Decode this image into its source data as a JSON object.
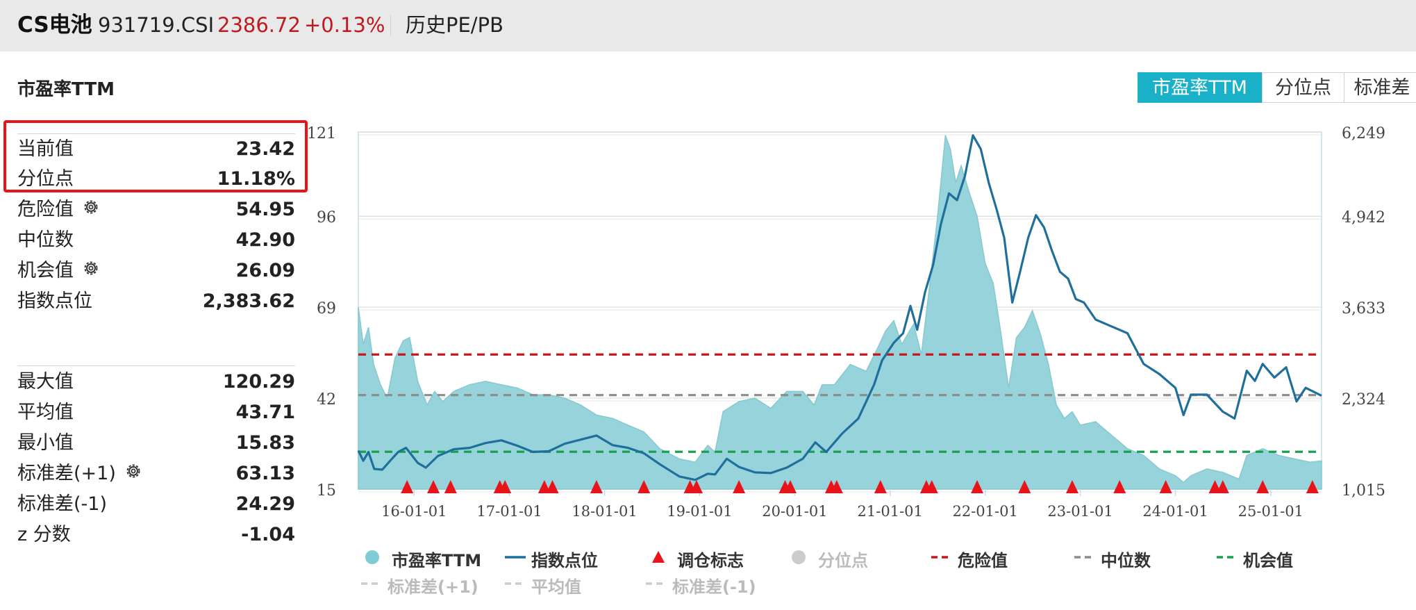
{
  "header": {
    "name": "CS电池",
    "code": "931719.CSI",
    "price": "2386.72",
    "change": "+0.13%",
    "view": "历史PE/PB"
  },
  "panel": {
    "title": "市盈率TTM",
    "tabs": [
      "市盈率TTM",
      "分位点",
      "标准差"
    ],
    "active_tab": "市盈率TTM"
  },
  "stats": {
    "current": {
      "label": "当前值",
      "value": "23.42"
    },
    "percentile": {
      "label": "分位点",
      "value": "11.18%"
    },
    "danger": {
      "label": "危险值",
      "value": "54.95"
    },
    "median": {
      "label": "中位数",
      "value": "42.90"
    },
    "opportunity": {
      "label": "机会值",
      "value": "26.09"
    },
    "index": {
      "label": "指数点位",
      "value": "2,383.62"
    },
    "max": {
      "label": "最大值",
      "value": "120.29"
    },
    "mean": {
      "label": "平均值",
      "value": "43.71"
    },
    "min": {
      "label": "最小值",
      "value": "15.83"
    },
    "sd_plus": {
      "label": "标准差(+1)",
      "value": "63.13"
    },
    "sd_minus": {
      "label": "标准差(-1)",
      "value": "24.29"
    },
    "z": {
      "label": "z 分数",
      "value": "-1.04"
    }
  },
  "colors": {
    "accent": "#1ab0c8",
    "area": "#96d3da",
    "index_line": "#1f6f9c",
    "danger": "#c8161d",
    "median": "#8c8c8c",
    "opportunity": "#1aa050",
    "marker": "#e8141a",
    "highlight_box": "#e8141a"
  },
  "chart_data": {
    "type": "area",
    "x_start": "2015-06-01",
    "x_end": "2025-07-15",
    "x_tick_labels": [
      "16-01-01",
      "17-01-01",
      "18-01-01",
      "19-01-01",
      "20-01-01",
      "21-01-01",
      "22-01-01",
      "23-01-01",
      "24-01-01",
      "25-01-01"
    ],
    "x_tick_dates": [
      "2016-01-01",
      "2017-01-01",
      "2018-01-01",
      "2019-01-01",
      "2020-01-01",
      "2021-01-01",
      "2022-01-01",
      "2023-01-01",
      "2024-01-01",
      "2025-01-01"
    ],
    "y_left": {
      "ticks": [
        "15",
        "42",
        "69",
        "96",
        "121"
      ],
      "tick_values": [
        15,
        42,
        69,
        96,
        121
      ],
      "range": [
        15,
        121
      ]
    },
    "y_right": {
      "ticks": [
        "1,015",
        "2,324",
        "3,633",
        "4,942",
        "6,249"
      ],
      "tick_values": [
        1015,
        2324,
        3633,
        4942,
        6249
      ],
      "range": [
        1015,
        6249
      ]
    },
    "series": [
      {
        "name": "市盈率TTM",
        "kind": "area",
        "axis": "left",
        "points": [
          [
            "2015-06-01",
            69
          ],
          [
            "2015-06-20",
            58
          ],
          [
            "2015-07-10",
            63
          ],
          [
            "2015-07-30",
            52
          ],
          [
            "2015-08-25",
            46
          ],
          [
            "2015-09-20",
            42
          ],
          [
            "2015-10-20",
            54
          ],
          [
            "2015-11-20",
            59
          ],
          [
            "2015-12-15",
            60
          ],
          [
            "2016-01-15",
            47
          ],
          [
            "2016-02-20",
            40
          ],
          [
            "2016-03-20",
            44
          ],
          [
            "2016-04-20",
            41
          ],
          [
            "2016-06-01",
            44
          ],
          [
            "2016-08-01",
            46
          ],
          [
            "2016-10-01",
            47
          ],
          [
            "2016-12-01",
            46
          ],
          [
            "2017-02-01",
            45
          ],
          [
            "2017-04-01",
            43
          ],
          [
            "2017-06-01",
            43
          ],
          [
            "2017-08-01",
            42
          ],
          [
            "2017-10-01",
            40
          ],
          [
            "2017-12-01",
            37
          ],
          [
            "2018-02-01",
            36
          ],
          [
            "2018-04-01",
            34
          ],
          [
            "2018-06-01",
            32
          ],
          [
            "2018-08-01",
            27
          ],
          [
            "2018-10-15",
            24
          ],
          [
            "2018-12-15",
            23
          ],
          [
            "2019-02-01",
            28
          ],
          [
            "2019-03-01",
            26
          ],
          [
            "2019-04-01",
            38
          ],
          [
            "2019-06-01",
            41
          ],
          [
            "2019-08-01",
            42
          ],
          [
            "2019-10-01",
            39
          ],
          [
            "2019-12-01",
            44
          ],
          [
            "2020-02-01",
            44
          ],
          [
            "2020-03-15",
            40
          ],
          [
            "2020-04-15",
            46
          ],
          [
            "2020-06-01",
            46
          ],
          [
            "2020-08-01",
            52
          ],
          [
            "2020-10-01",
            50
          ],
          [
            "2020-11-15",
            57
          ],
          [
            "2020-12-15",
            62
          ],
          [
            "2021-01-15",
            65
          ],
          [
            "2021-02-15",
            58
          ],
          [
            "2021-04-01",
            64
          ],
          [
            "2021-05-01",
            55
          ],
          [
            "2021-06-01",
            75
          ],
          [
            "2021-07-01",
            95
          ],
          [
            "2021-08-01",
            120
          ],
          [
            "2021-08-20",
            116
          ],
          [
            "2021-09-10",
            106
          ],
          [
            "2021-10-01",
            111
          ],
          [
            "2021-11-01",
            103
          ],
          [
            "2021-12-01",
            96
          ],
          [
            "2022-01-01",
            82
          ],
          [
            "2022-02-01",
            76
          ],
          [
            "2022-03-01",
            62
          ],
          [
            "2022-04-01",
            45
          ],
          [
            "2022-05-01",
            60
          ],
          [
            "2022-06-01",
            63
          ],
          [
            "2022-07-01",
            68
          ],
          [
            "2022-08-01",
            61
          ],
          [
            "2022-09-01",
            52
          ],
          [
            "2022-10-01",
            40
          ],
          [
            "2022-11-01",
            36
          ],
          [
            "2022-12-01",
            38
          ],
          [
            "2023-01-01",
            34
          ],
          [
            "2023-03-01",
            35
          ],
          [
            "2023-05-01",
            31
          ],
          [
            "2023-07-01",
            27
          ],
          [
            "2023-09-01",
            25
          ],
          [
            "2023-11-01",
            21
          ],
          [
            "2024-01-01",
            19
          ],
          [
            "2024-02-01",
            17
          ],
          [
            "2024-03-01",
            19
          ],
          [
            "2024-05-01",
            21
          ],
          [
            "2024-07-01",
            20
          ],
          [
            "2024-09-01",
            18
          ],
          [
            "2024-10-01",
            25
          ],
          [
            "2024-12-01",
            27
          ],
          [
            "2025-02-01",
            25
          ],
          [
            "2025-04-01",
            24
          ],
          [
            "2025-06-01",
            23
          ],
          [
            "2025-07-15",
            23.4
          ]
        ]
      },
      {
        "name": "指数点位",
        "kind": "line",
        "axis": "right",
        "points": [
          [
            "2015-06-01",
            1580
          ],
          [
            "2015-06-20",
            1430
          ],
          [
            "2015-07-10",
            1560
          ],
          [
            "2015-08-01",
            1310
          ],
          [
            "2015-09-01",
            1300
          ],
          [
            "2015-10-01",
            1430
          ],
          [
            "2015-11-01",
            1560
          ],
          [
            "2015-12-01",
            1620
          ],
          [
            "2016-01-15",
            1400
          ],
          [
            "2016-02-15",
            1330
          ],
          [
            "2016-04-01",
            1500
          ],
          [
            "2016-06-01",
            1600
          ],
          [
            "2016-08-01",
            1620
          ],
          [
            "2016-10-01",
            1690
          ],
          [
            "2016-12-01",
            1730
          ],
          [
            "2017-02-01",
            1650
          ],
          [
            "2017-04-01",
            1560
          ],
          [
            "2017-06-01",
            1570
          ],
          [
            "2017-08-01",
            1680
          ],
          [
            "2017-10-01",
            1740
          ],
          [
            "2017-12-01",
            1800
          ],
          [
            "2018-02-01",
            1660
          ],
          [
            "2018-04-01",
            1620
          ],
          [
            "2018-06-01",
            1540
          ],
          [
            "2018-08-01",
            1380
          ],
          [
            "2018-10-15",
            1200
          ],
          [
            "2018-12-15",
            1150
          ],
          [
            "2019-02-01",
            1240
          ],
          [
            "2019-03-01",
            1230
          ],
          [
            "2019-04-15",
            1460
          ],
          [
            "2019-06-01",
            1340
          ],
          [
            "2019-08-01",
            1260
          ],
          [
            "2019-10-01",
            1250
          ],
          [
            "2019-12-01",
            1330
          ],
          [
            "2020-02-01",
            1460
          ],
          [
            "2020-03-20",
            1700
          ],
          [
            "2020-05-01",
            1560
          ],
          [
            "2020-07-01",
            1830
          ],
          [
            "2020-09-01",
            2050
          ],
          [
            "2020-11-01",
            2550
          ],
          [
            "2020-12-01",
            2900
          ],
          [
            "2021-01-15",
            3160
          ],
          [
            "2021-02-20",
            3300
          ],
          [
            "2021-03-20",
            3700
          ],
          [
            "2021-04-15",
            3350
          ],
          [
            "2021-05-15",
            3900
          ],
          [
            "2021-06-15",
            4300
          ],
          [
            "2021-07-15",
            4900
          ],
          [
            "2021-08-15",
            5350
          ],
          [
            "2021-09-15",
            5250
          ],
          [
            "2021-10-15",
            5600
          ],
          [
            "2021-11-15",
            6200
          ],
          [
            "2021-12-15",
            6000
          ],
          [
            "2022-01-15",
            5500
          ],
          [
            "2022-02-15",
            5100
          ],
          [
            "2022-03-15",
            4700
          ],
          [
            "2022-04-15",
            3750
          ],
          [
            "2022-05-15",
            4200
          ],
          [
            "2022-06-15",
            4700
          ],
          [
            "2022-07-15",
            5030
          ],
          [
            "2022-08-15",
            4850
          ],
          [
            "2022-09-15",
            4500
          ],
          [
            "2022-10-15",
            4200
          ],
          [
            "2022-11-15",
            4100
          ],
          [
            "2022-12-15",
            3800
          ],
          [
            "2023-01-15",
            3750
          ],
          [
            "2023-03-01",
            3500
          ],
          [
            "2023-05-01",
            3400
          ],
          [
            "2023-07-01",
            3300
          ],
          [
            "2023-09-01",
            2850
          ],
          [
            "2023-11-01",
            2700
          ],
          [
            "2024-01-01",
            2500
          ],
          [
            "2024-02-01",
            2100
          ],
          [
            "2024-03-01",
            2400
          ],
          [
            "2024-05-01",
            2400
          ],
          [
            "2024-07-01",
            2150
          ],
          [
            "2024-08-15",
            2050
          ],
          [
            "2024-10-01",
            2750
          ],
          [
            "2024-11-01",
            2600
          ],
          [
            "2024-12-01",
            2850
          ],
          [
            "2025-01-15",
            2650
          ],
          [
            "2025-03-01",
            2800
          ],
          [
            "2025-04-10",
            2300
          ],
          [
            "2025-05-15",
            2500
          ],
          [
            "2025-07-15",
            2383.62
          ]
        ]
      }
    ],
    "reference_lines": [
      {
        "name": "危险值",
        "value": 54.95,
        "style": "dashed",
        "color": "#c8161d"
      },
      {
        "name": "中位数",
        "value": 42.9,
        "style": "dashed",
        "color": "#8c8c8c"
      },
      {
        "name": "机会值",
        "value": 26.09,
        "style": "dashed",
        "color": "#1aa050"
      }
    ],
    "rebalance_dates": [
      "2015-12-05",
      "2016-03-15",
      "2016-05-20",
      "2016-11-25",
      "2016-12-15",
      "2017-05-15",
      "2017-06-15",
      "2017-12-01",
      "2018-06-01",
      "2018-11-25",
      "2018-12-20",
      "2019-06-01",
      "2019-11-25",
      "2019-12-15",
      "2020-05-20",
      "2020-06-10",
      "2020-11-25",
      "2021-05-20",
      "2021-06-10",
      "2021-12-01",
      "2022-06-01",
      "2022-12-01",
      "2023-06-01",
      "2023-11-25",
      "2024-06-01",
      "2024-07-01",
      "2024-12-01",
      "2025-06-10"
    ],
    "legend": {
      "placement": "bottom",
      "items": [
        {
          "label": "市盈率TTM",
          "type": "dot",
          "color": "#7ecdd6",
          "active": true
        },
        {
          "label": "指数点位",
          "type": "line",
          "color": "#1f6f9c",
          "active": true
        },
        {
          "label": "调仓标志",
          "type": "triangle",
          "color": "#e8141a",
          "active": true
        },
        {
          "label": "分位点",
          "type": "dot",
          "color": "#cccccc",
          "active": false
        },
        {
          "label": "危险值",
          "type": "dash",
          "color": "#c8161d",
          "active": true
        },
        {
          "label": "中位数",
          "type": "dash",
          "color": "#8c8c8c",
          "active": true
        },
        {
          "label": "机会值",
          "type": "dash",
          "color": "#1aa050",
          "active": true
        },
        {
          "label": "标准差(+1)",
          "type": "dash",
          "color": "#cccccc",
          "active": false
        },
        {
          "label": "平均值",
          "type": "dash",
          "color": "#cccccc",
          "active": false
        },
        {
          "label": "标准差(-1)",
          "type": "dash",
          "color": "#cccccc",
          "active": false
        }
      ]
    }
  }
}
